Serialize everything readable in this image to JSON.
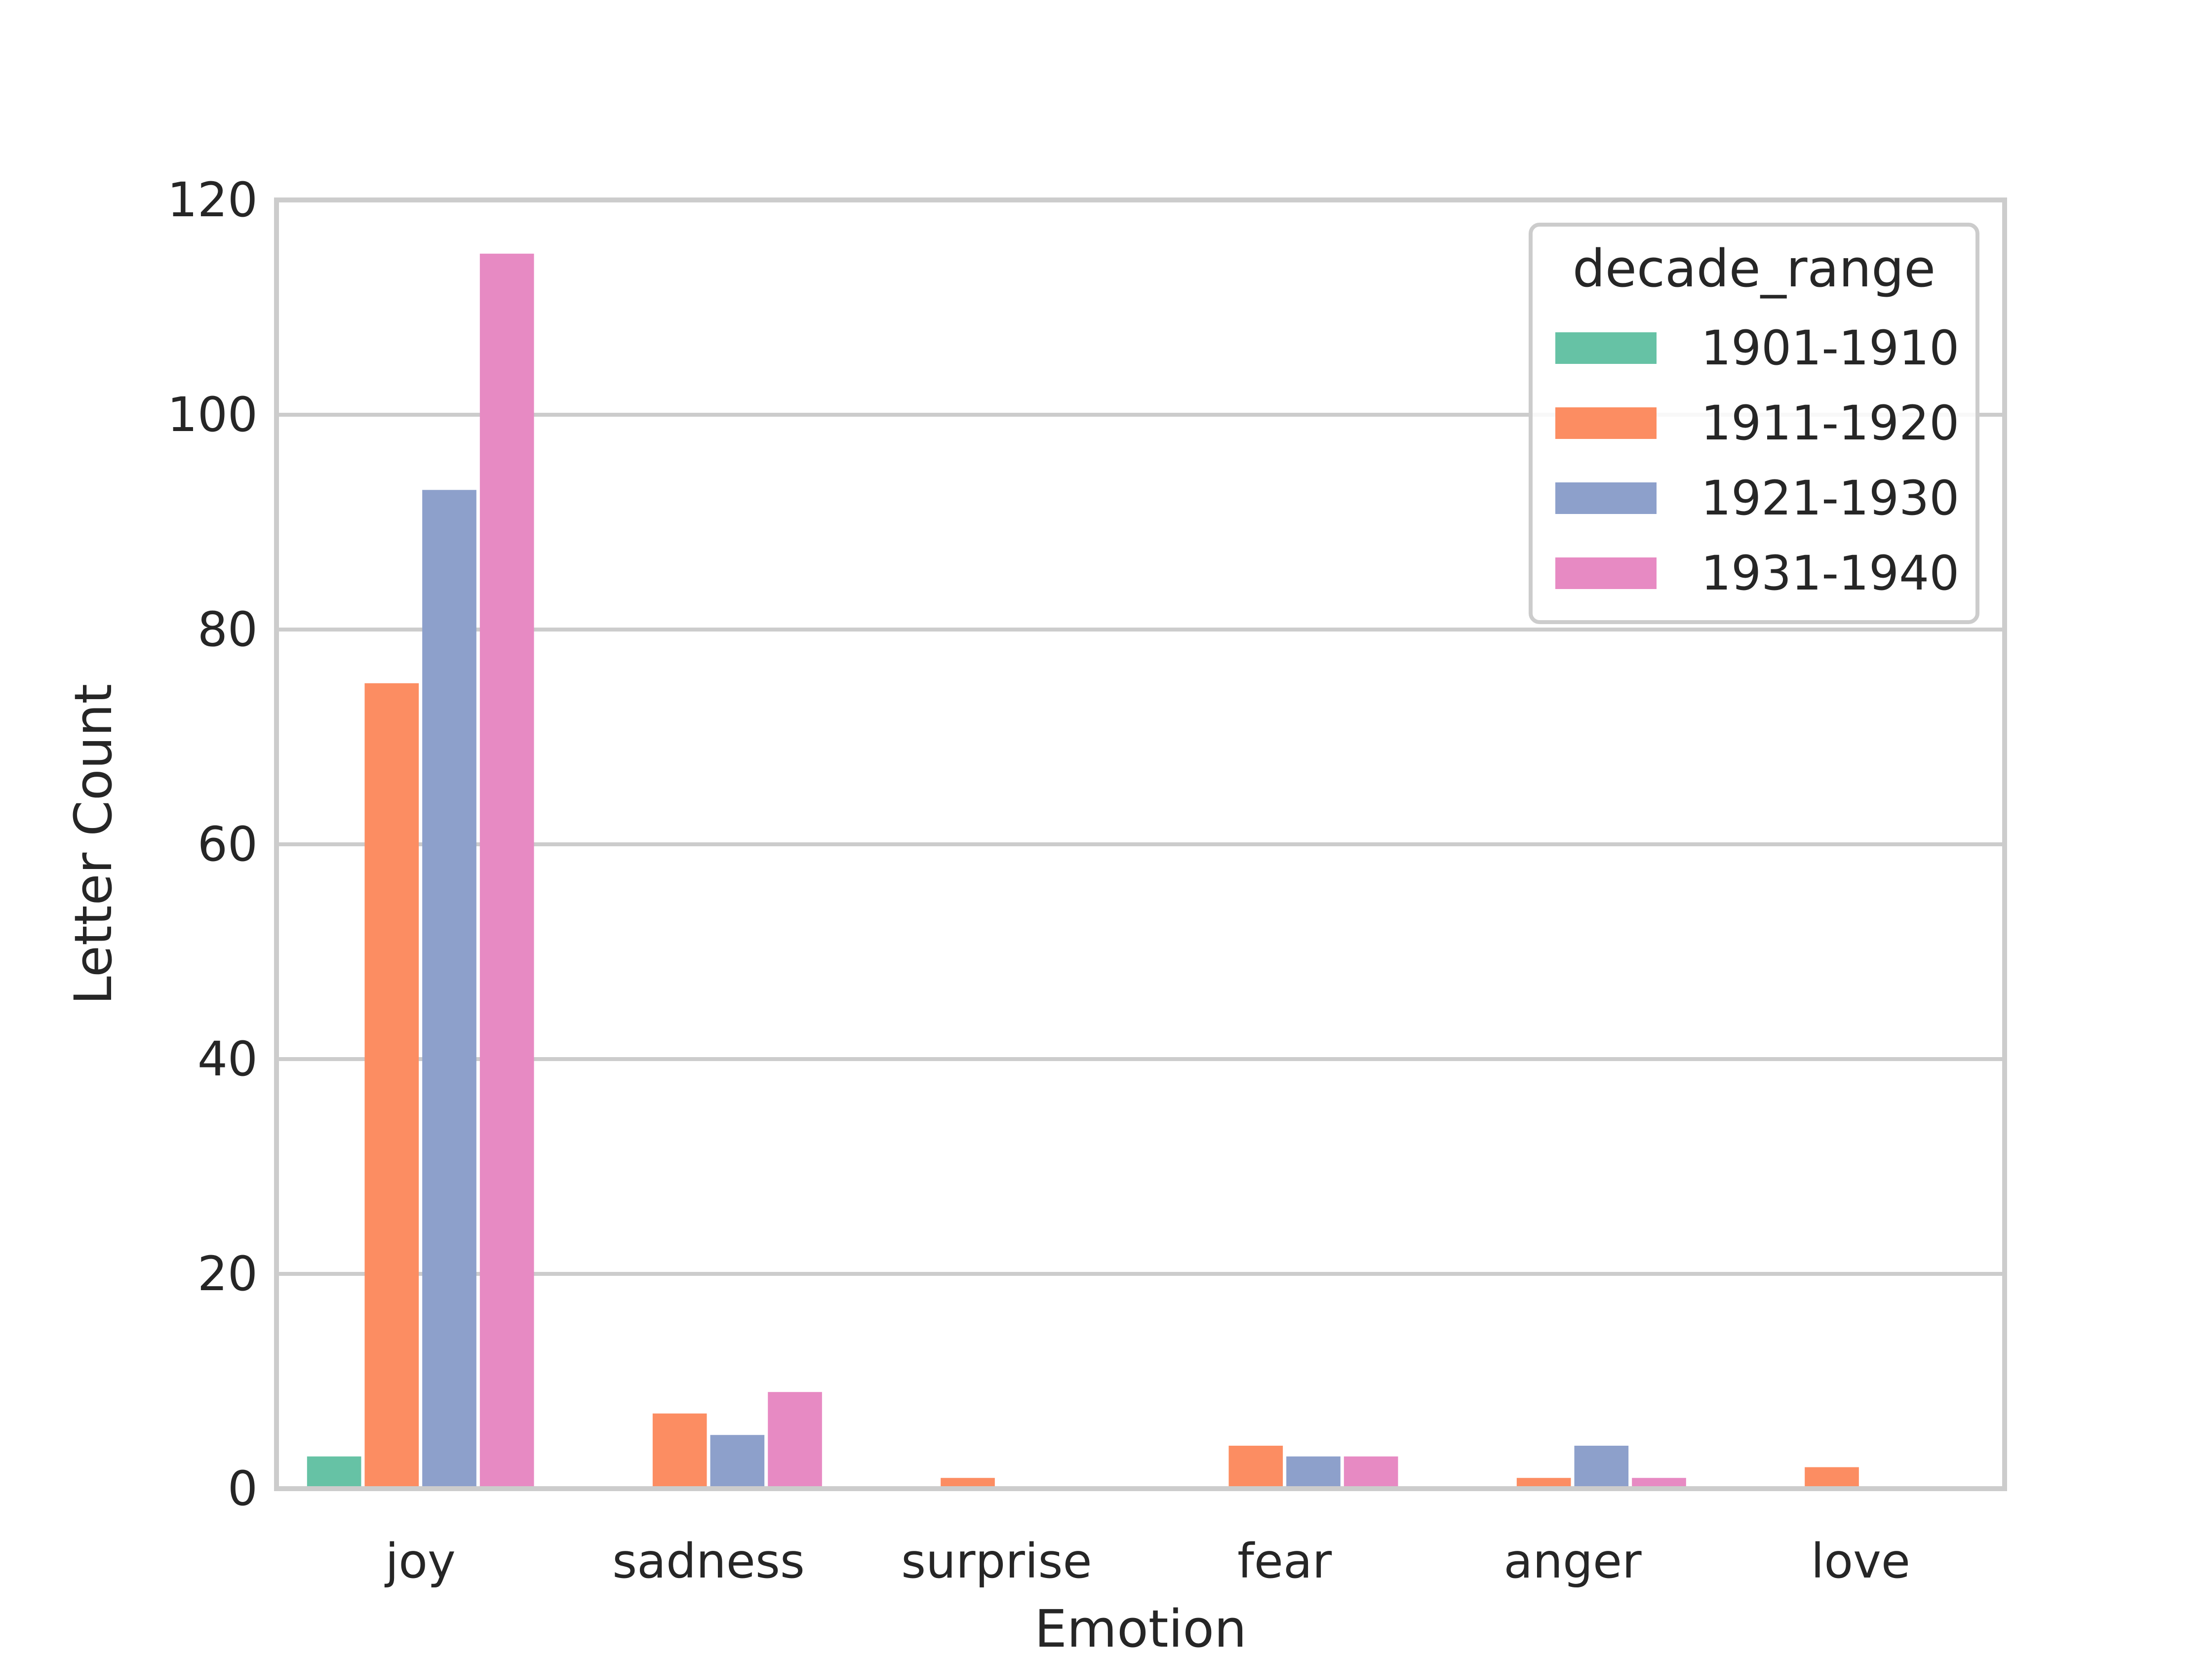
{
  "chart_data": {
    "type": "bar",
    "title": "",
    "xlabel": "Emotion",
    "ylabel": "Letter Count",
    "ylim": [
      0,
      120
    ],
    "yticks": [
      0,
      20,
      40,
      60,
      80,
      100,
      120
    ],
    "grid": "horizontal",
    "legend": {
      "title": "decade_range",
      "placement": "top-right"
    },
    "categories": [
      "joy",
      "sadness",
      "surprise",
      "fear",
      "anger",
      "love"
    ],
    "series": [
      {
        "name": "1901-1910",
        "color": "#66c2a5",
        "values": [
          3,
          0,
          0,
          0,
          0,
          0
        ]
      },
      {
        "name": "1911-1920",
        "color": "#fc8d62",
        "values": [
          75,
          7,
          1,
          4,
          1,
          2
        ]
      },
      {
        "name": "1921-1930",
        "color": "#8da0cb",
        "values": [
          93,
          5,
          0,
          3,
          4,
          0
        ]
      },
      {
        "name": "1931-1940",
        "color": "#e78ac3",
        "values": [
          115,
          9,
          0,
          3,
          1,
          0
        ]
      }
    ],
    "colors": {
      "grid": "#cccccc",
      "frame": "#cccccc",
      "text": "#262626"
    }
  }
}
